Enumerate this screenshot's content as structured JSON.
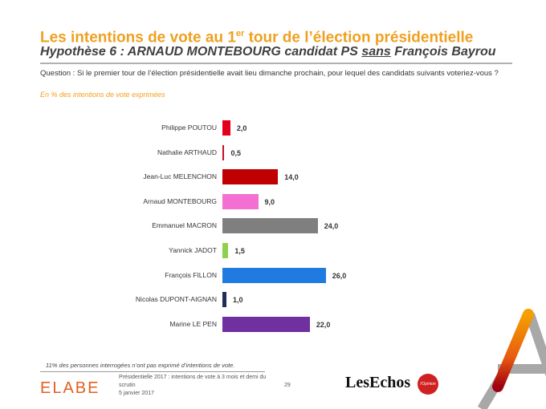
{
  "header": {
    "title_pre": "Les intentions de vote au 1",
    "title_sup": "er",
    "title_post": " tour de l’élection présidentielle",
    "subtitle_pre": "Hypothèse 6 : ARNAUD MONTEBOURG candidat PS ",
    "subtitle_u": "sans",
    "subtitle_post": " François Bayrou"
  },
  "question": "Question : Si le premier tour de l’élection présidentielle avait lieu dimanche prochain, pour lequel des candidats suivants voteriez-vous ?",
  "unit": "En %  des intentions de vote exprimées",
  "chart_data": {
    "type": "bar",
    "orientation": "horizontal",
    "title": "Les intentions de vote au 1er tour de l’élection présidentielle",
    "xlabel": "",
    "ylabel": "",
    "xlim": [
      0,
      26
    ],
    "categories": [
      "Philippe POUTOU",
      "Nathalie ARTHAUD",
      "Jean-Luc MELENCHON",
      "Arnaud MONTEBOURG",
      "Emmanuel MACRON",
      "Yannick JADOT",
      "François FILLON",
      "Nicolas DUPONT-AIGNAN",
      "Marine LE PEN"
    ],
    "values": [
      2.0,
      0.5,
      14.0,
      9.0,
      24.0,
      1.5,
      26.0,
      1.0,
      22.0
    ],
    "labels": [
      "2,0",
      "0,5",
      "14,0",
      "9,0",
      "24,0",
      "1,5",
      "26,0",
      "1,0",
      "22,0"
    ],
    "colors": [
      "#e3001b",
      "#c8101e",
      "#c00000",
      "#f36fd1",
      "#7f7f7f",
      "#8fd14f",
      "#1f7be0",
      "#1f2d5c",
      "#7030a0"
    ]
  },
  "footer": {
    "note": "11% des personnes interrogées n’ont pas exprimé d’intentions de vote.",
    "brand": "ELABE",
    "info_line1": "Présidentielle 2017 : intentions de vote à 3 mois et demi du scrutin",
    "info_line2": "5 janvier 2017",
    "page": "29",
    "partner1": "LesEchos",
    "partner2": "l'Opinion"
  }
}
